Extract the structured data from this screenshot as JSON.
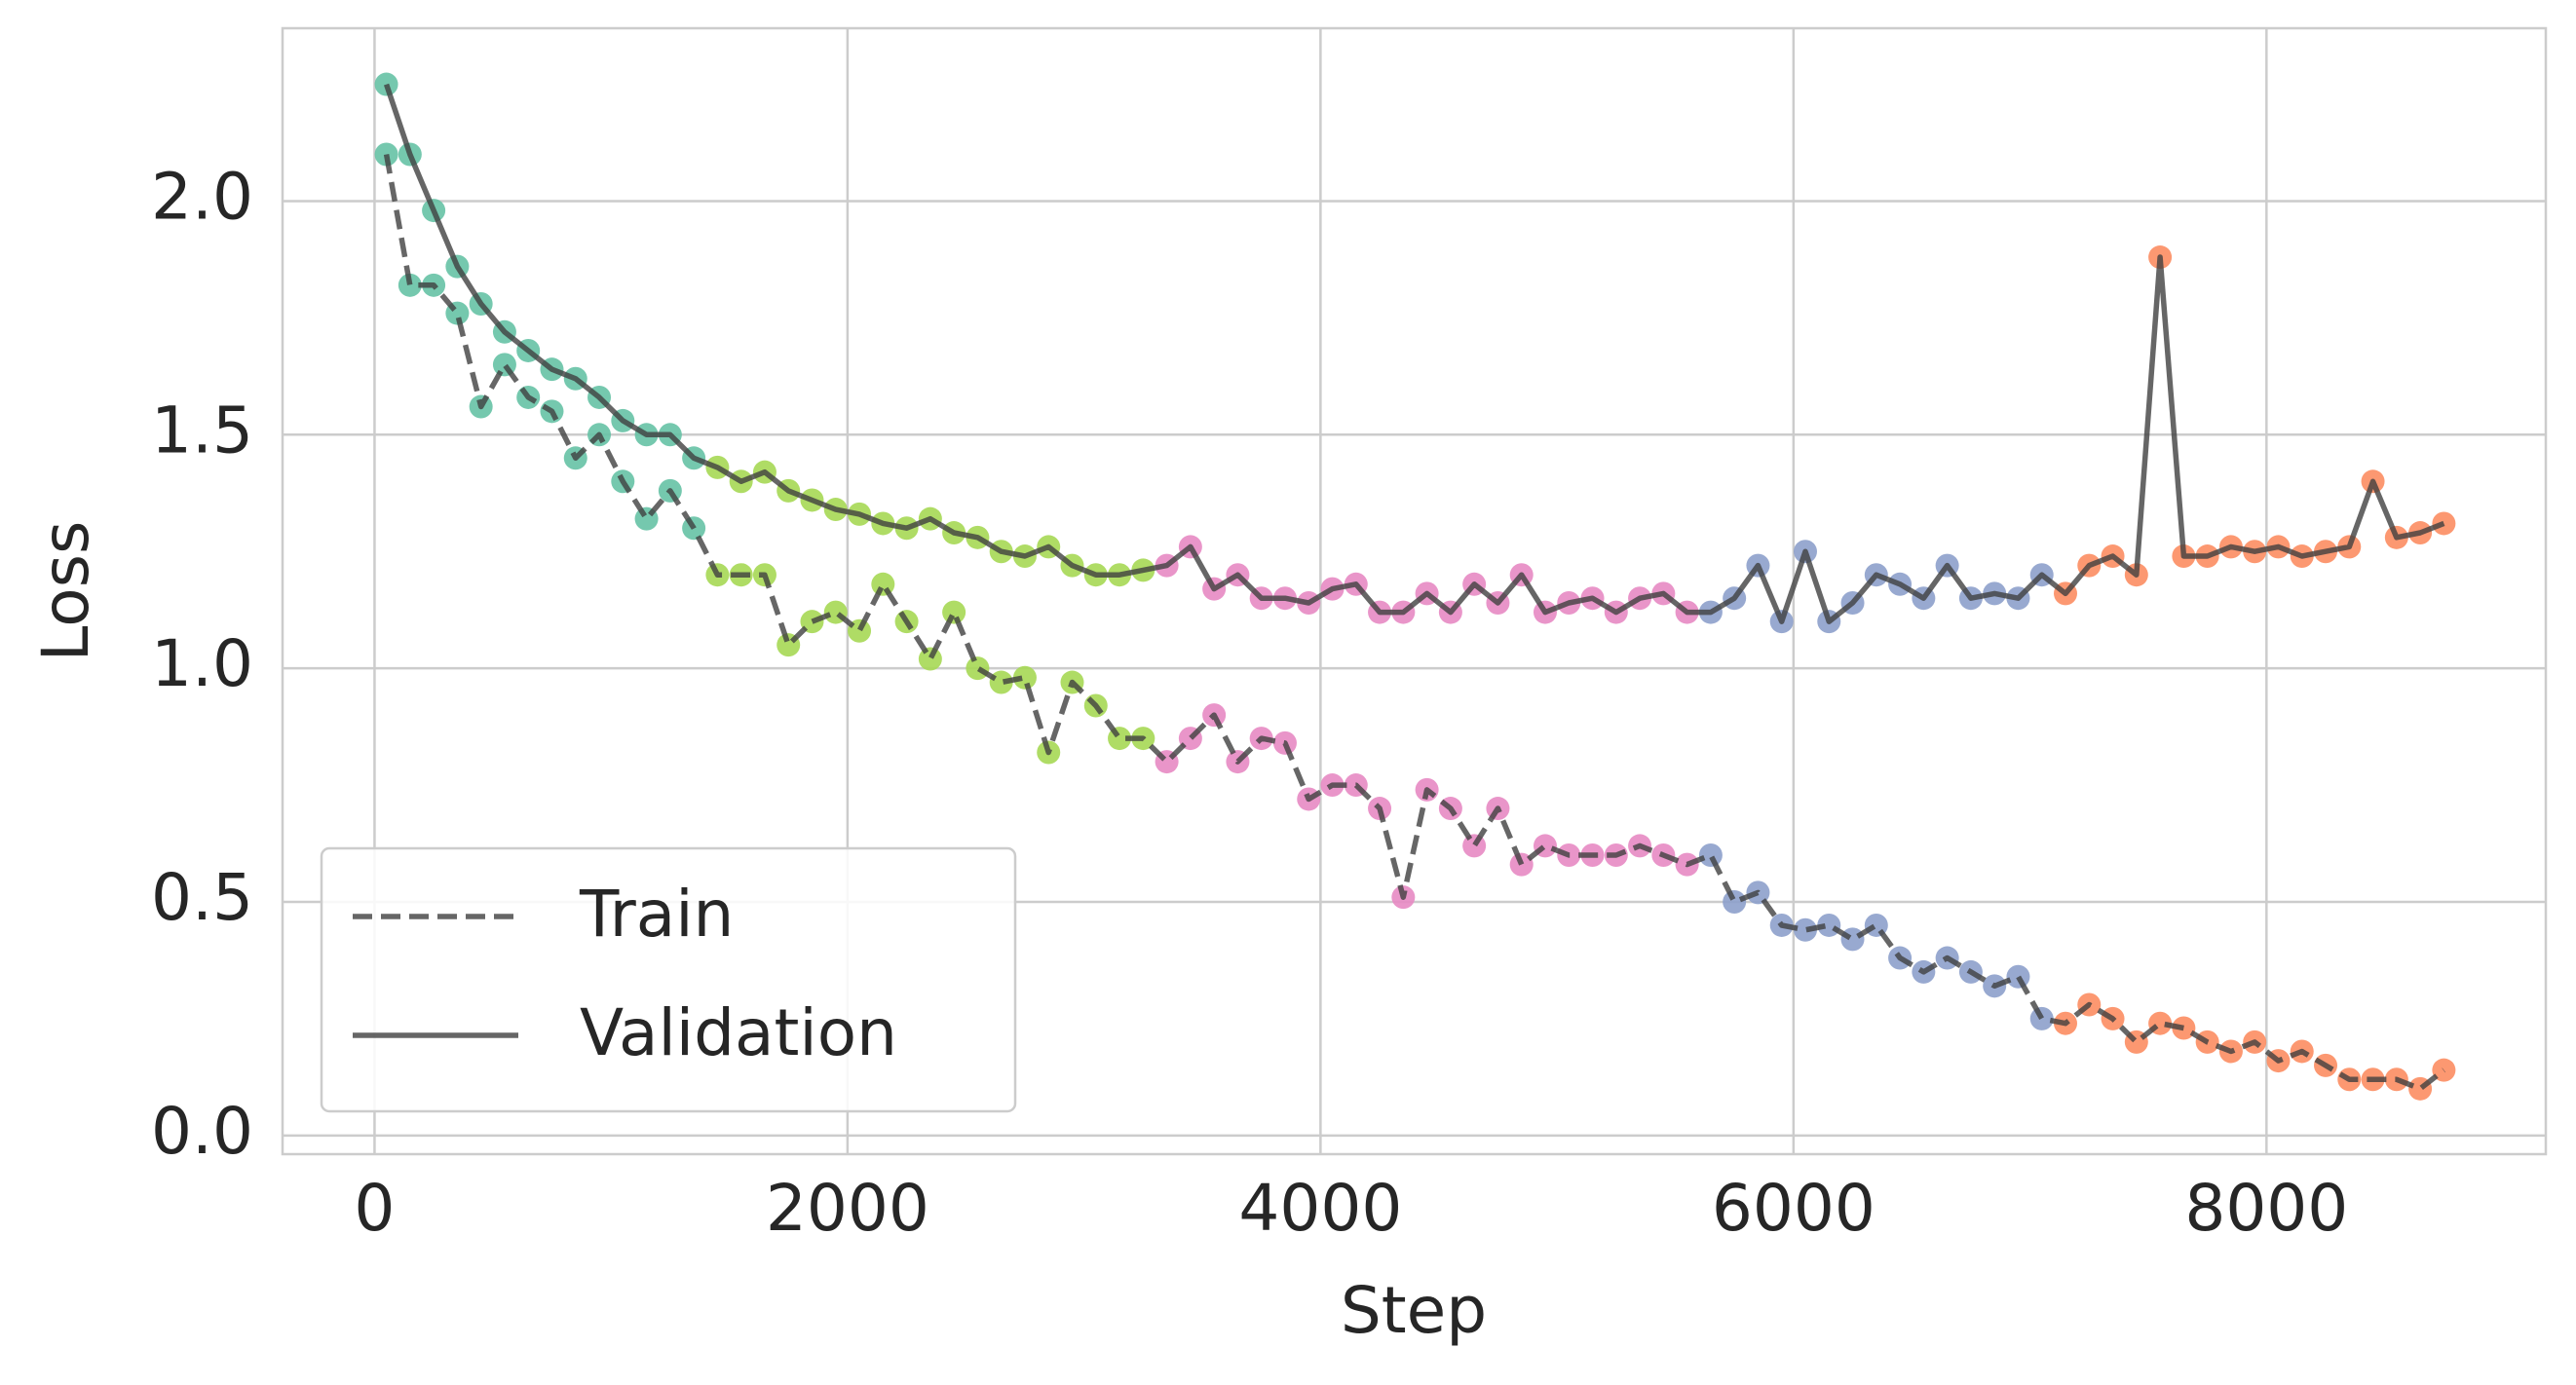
{
  "chart_data": {
    "type": "line",
    "xlabel": "Step",
    "ylabel": "Loss",
    "x": [
      50,
      150,
      250,
      350,
      450,
      550,
      650,
      750,
      850,
      950,
      1050,
      1150,
      1250,
      1350,
      1450,
      1550,
      1650,
      1750,
      1850,
      1950,
      2050,
      2150,
      2250,
      2350,
      2450,
      2550,
      2650,
      2750,
      2850,
      2950,
      3050,
      3150,
      3250,
      3350,
      3450,
      3550,
      3650,
      3750,
      3850,
      3950,
      4050,
      4150,
      4250,
      4350,
      4450,
      4550,
      4650,
      4750,
      4850,
      4950,
      5050,
      5150,
      5250,
      5350,
      5450,
      5550,
      5650,
      5750,
      5850,
      5950,
      6050,
      6150,
      6250,
      6350,
      6450,
      6550,
      6650,
      6750,
      6850,
      6950,
      7050,
      7150,
      7250,
      7350,
      7450,
      7550,
      7650,
      7750,
      7850,
      7950,
      8050,
      8150,
      8250,
      8350,
      8450,
      8550,
      8650,
      8750
    ],
    "series": [
      {
        "name": "Train",
        "color": "#404040",
        "dashed": true,
        "values": [
          2.1,
          1.82,
          1.82,
          1.76,
          1.56,
          1.65,
          1.58,
          1.55,
          1.45,
          1.5,
          1.4,
          1.32,
          1.38,
          1.3,
          1.2,
          1.2,
          1.2,
          1.05,
          1.1,
          1.12,
          1.08,
          1.18,
          1.1,
          1.02,
          1.12,
          1.0,
          0.97,
          0.98,
          0.82,
          0.97,
          0.92,
          0.85,
          0.85,
          0.8,
          0.85,
          0.9,
          0.8,
          0.85,
          0.84,
          0.72,
          0.75,
          0.75,
          0.7,
          0.51,
          0.74,
          0.7,
          0.62,
          0.7,
          0.58,
          0.62,
          0.6,
          0.6,
          0.6,
          0.62,
          0.6,
          0.58,
          0.6,
          0.5,
          0.52,
          0.45,
          0.44,
          0.45,
          0.42,
          0.45,
          0.38,
          0.35,
          0.38,
          0.35,
          0.32,
          0.34,
          0.25,
          0.24,
          0.28,
          0.25,
          0.2,
          0.24,
          0.23,
          0.2,
          0.18,
          0.2,
          0.16,
          0.18,
          0.15,
          0.12,
          0.12,
          0.12,
          0.1,
          0.14
        ]
      },
      {
        "name": "Validation",
        "color": "#404040",
        "dashed": false,
        "values": [
          2.25,
          2.1,
          1.98,
          1.86,
          1.78,
          1.72,
          1.68,
          1.64,
          1.62,
          1.58,
          1.53,
          1.5,
          1.5,
          1.45,
          1.43,
          1.4,
          1.42,
          1.38,
          1.36,
          1.34,
          1.33,
          1.31,
          1.3,
          1.32,
          1.29,
          1.28,
          1.25,
          1.24,
          1.26,
          1.22,
          1.2,
          1.2,
          1.21,
          1.22,
          1.26,
          1.17,
          1.2,
          1.15,
          1.15,
          1.14,
          1.17,
          1.18,
          1.12,
          1.12,
          1.16,
          1.12,
          1.18,
          1.14,
          1.2,
          1.12,
          1.14,
          1.15,
          1.12,
          1.15,
          1.16,
          1.12,
          1.12,
          1.15,
          1.22,
          1.1,
          1.25,
          1.1,
          1.14,
          1.2,
          1.18,
          1.15,
          1.22,
          1.15,
          1.16,
          1.15,
          1.2,
          1.16,
          1.22,
          1.24,
          1.2,
          1.88,
          1.24,
          1.24,
          1.26,
          1.25,
          1.26,
          1.24,
          1.25,
          1.26,
          1.4,
          1.28,
          1.29,
          1.31
        ]
      }
    ],
    "marker_phases": [
      {
        "from": 0,
        "color": "#66c2a5"
      },
      {
        "from": 1400,
        "color": "#a6d854"
      },
      {
        "from": 3300,
        "color": "#e78ac3"
      },
      {
        "from": 5600,
        "color": "#8da0cb"
      },
      {
        "from": 7100,
        "color": "#fc8d62"
      }
    ],
    "xlim": [
      -389,
      9181
    ],
    "xticks": [
      0,
      2000,
      4000,
      6000,
      8000
    ],
    "ylim": [
      -0.04,
      2.37
    ],
    "yticks": [
      {
        "value": 0,
        "label": "0.0"
      },
      {
        "value": 0.5,
        "label": "0.5"
      },
      {
        "value": 1,
        "label": "1.0"
      },
      {
        "value": 1.5,
        "label": "1.5"
      },
      {
        "value": 2,
        "label": "2.0"
      }
    ],
    "grid": true,
    "legend": "lower left"
  }
}
